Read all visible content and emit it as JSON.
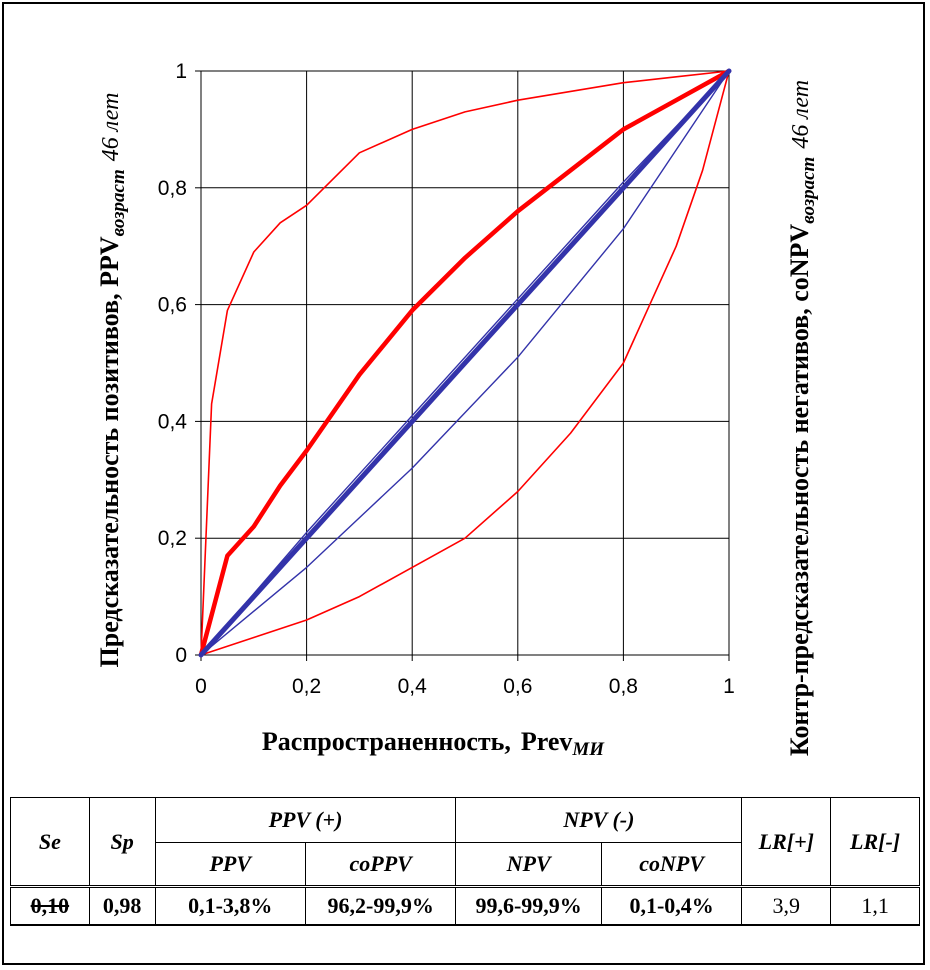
{
  "chart_data": {
    "type": "line",
    "xlabel_main": "Распространенность,",
    "xlabel_var": "Prev",
    "xlabel_sub": "МИ",
    "ylabel_left_main": "Предсказательность позитивов, PPV",
    "ylabel_left_sub": "возраст",
    "ylabel_left_tail": "46 лет",
    "ylabel_right_main": "Контр-предсказательность негативов, coNPV",
    "ylabel_right_sub": "возраст",
    "ylabel_right_tail": "46 лет",
    "xlim": [
      0,
      1
    ],
    "ylim": [
      0,
      1
    ],
    "x_ticks": [
      "0",
      "0,2",
      "0,4",
      "0,6",
      "0,8",
      "1"
    ],
    "y_ticks": [
      "0",
      "0,2",
      "0,4",
      "0,6",
      "0,8",
      "1"
    ],
    "grid": true,
    "series": [
      {
        "color": "#ff0000",
        "width": 1.6,
        "x": [
          0,
          0.02,
          0.05,
          0.1,
          0.15,
          0.2,
          0.3,
          0.4,
          0.5,
          0.6,
          0.7,
          0.8,
          0.9,
          1
        ],
        "y": [
          0,
          0.43,
          0.59,
          0.69,
          0.74,
          0.77,
          0.86,
          0.9,
          0.93,
          0.95,
          0.965,
          0.98,
          0.99,
          1
        ]
      },
      {
        "color": "#ff0000",
        "width": 4.5,
        "x": [
          0,
          0.05,
          0.1,
          0.15,
          0.2,
          0.3,
          0.4,
          0.5,
          0.6,
          0.7,
          0.8,
          0.9,
          1
        ],
        "y": [
          0,
          0.17,
          0.22,
          0.29,
          0.35,
          0.48,
          0.59,
          0.68,
          0.76,
          0.83,
          0.9,
          0.95,
          1
        ]
      },
      {
        "color": "#ff0000",
        "width": 1.6,
        "x": [
          0,
          0.1,
          0.2,
          0.3,
          0.4,
          0.5,
          0.6,
          0.7,
          0.8,
          0.85,
          0.9,
          0.95,
          1
        ],
        "y": [
          0,
          0.03,
          0.06,
          0.1,
          0.15,
          0.2,
          0.28,
          0.38,
          0.5,
          0.6,
          0.7,
          0.83,
          1
        ]
      },
      {
        "color": "#3333aa",
        "width": 5,
        "x": [
          0,
          0.2,
          0.4,
          0.6,
          0.8,
          1
        ],
        "y": [
          0,
          0.2,
          0.4,
          0.6,
          0.8,
          1
        ]
      },
      {
        "color": "#3333aa",
        "width": 1.4,
        "x": [
          0,
          0.2,
          0.4,
          0.6,
          0.8,
          1
        ],
        "y": [
          0,
          0.21,
          0.41,
          0.61,
          0.81,
          1
        ]
      },
      {
        "color": "#3333aa",
        "width": 1.4,
        "x": [
          0,
          0.2,
          0.4,
          0.6,
          0.8,
          1
        ],
        "y": [
          0,
          0.15,
          0.32,
          0.51,
          0.73,
          1
        ]
      }
    ]
  },
  "table": {
    "headers": {
      "se": "Se",
      "sp": "Sp",
      "ppv_group": "PPV (+)",
      "npv_group": "NPV (-)",
      "lr_pos": "LR[+]",
      "lr_neg": "LR[-]",
      "ppv": "PPV",
      "coppv": "coPPV",
      "npv": "NPV",
      "conpv": "coNPV"
    },
    "row": {
      "se": "0,10",
      "sp": "0,98",
      "ppv": "0,1-3,8%",
      "coppv": "96,2-99,9%",
      "npv": "99,6-99,9%",
      "conpv": "0,1-0,4%",
      "lr_pos": "3,9",
      "lr_neg": "1,1"
    }
  }
}
